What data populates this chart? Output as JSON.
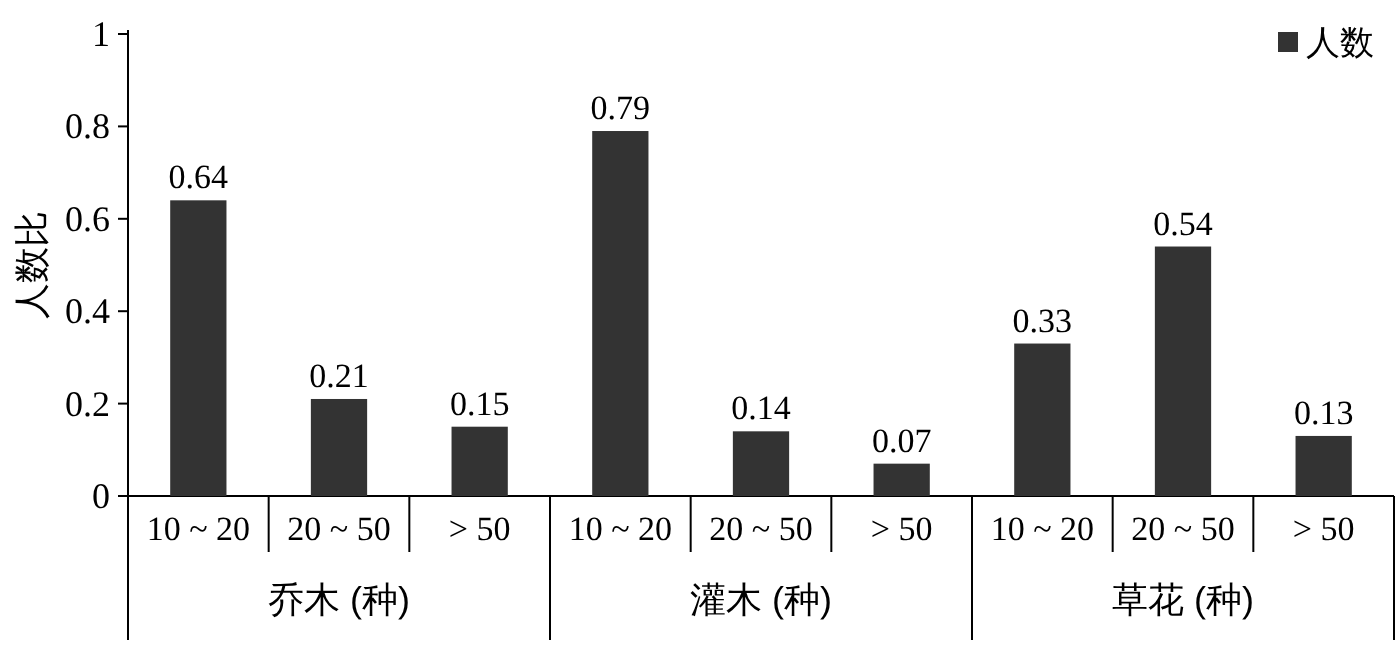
{
  "chart_data": {
    "type": "bar",
    "ylabel": "人数比",
    "categories": [
      "10 ~ 20",
      "20 ~ 50",
      "> 50",
      "10 ~ 20",
      "20 ~ 50",
      "> 50",
      "10 ~ 20",
      "20 ~ 50",
      "> 50"
    ],
    "series": [
      {
        "name": "人数",
        "color": "#333333",
        "values": [
          0.64,
          0.21,
          0.15,
          0.79,
          0.14,
          0.07,
          0.33,
          0.54,
          0.13
        ]
      }
    ],
    "annotations": [
      "乔木 (种)",
      "灌木 (种)",
      "草花 (种)"
    ],
    "ylim": [
      0,
      1
    ],
    "yticks": [
      0,
      0.2,
      0.4,
      0.6,
      0.8,
      1
    ],
    "data_labels": true,
    "legend": "top right"
  }
}
